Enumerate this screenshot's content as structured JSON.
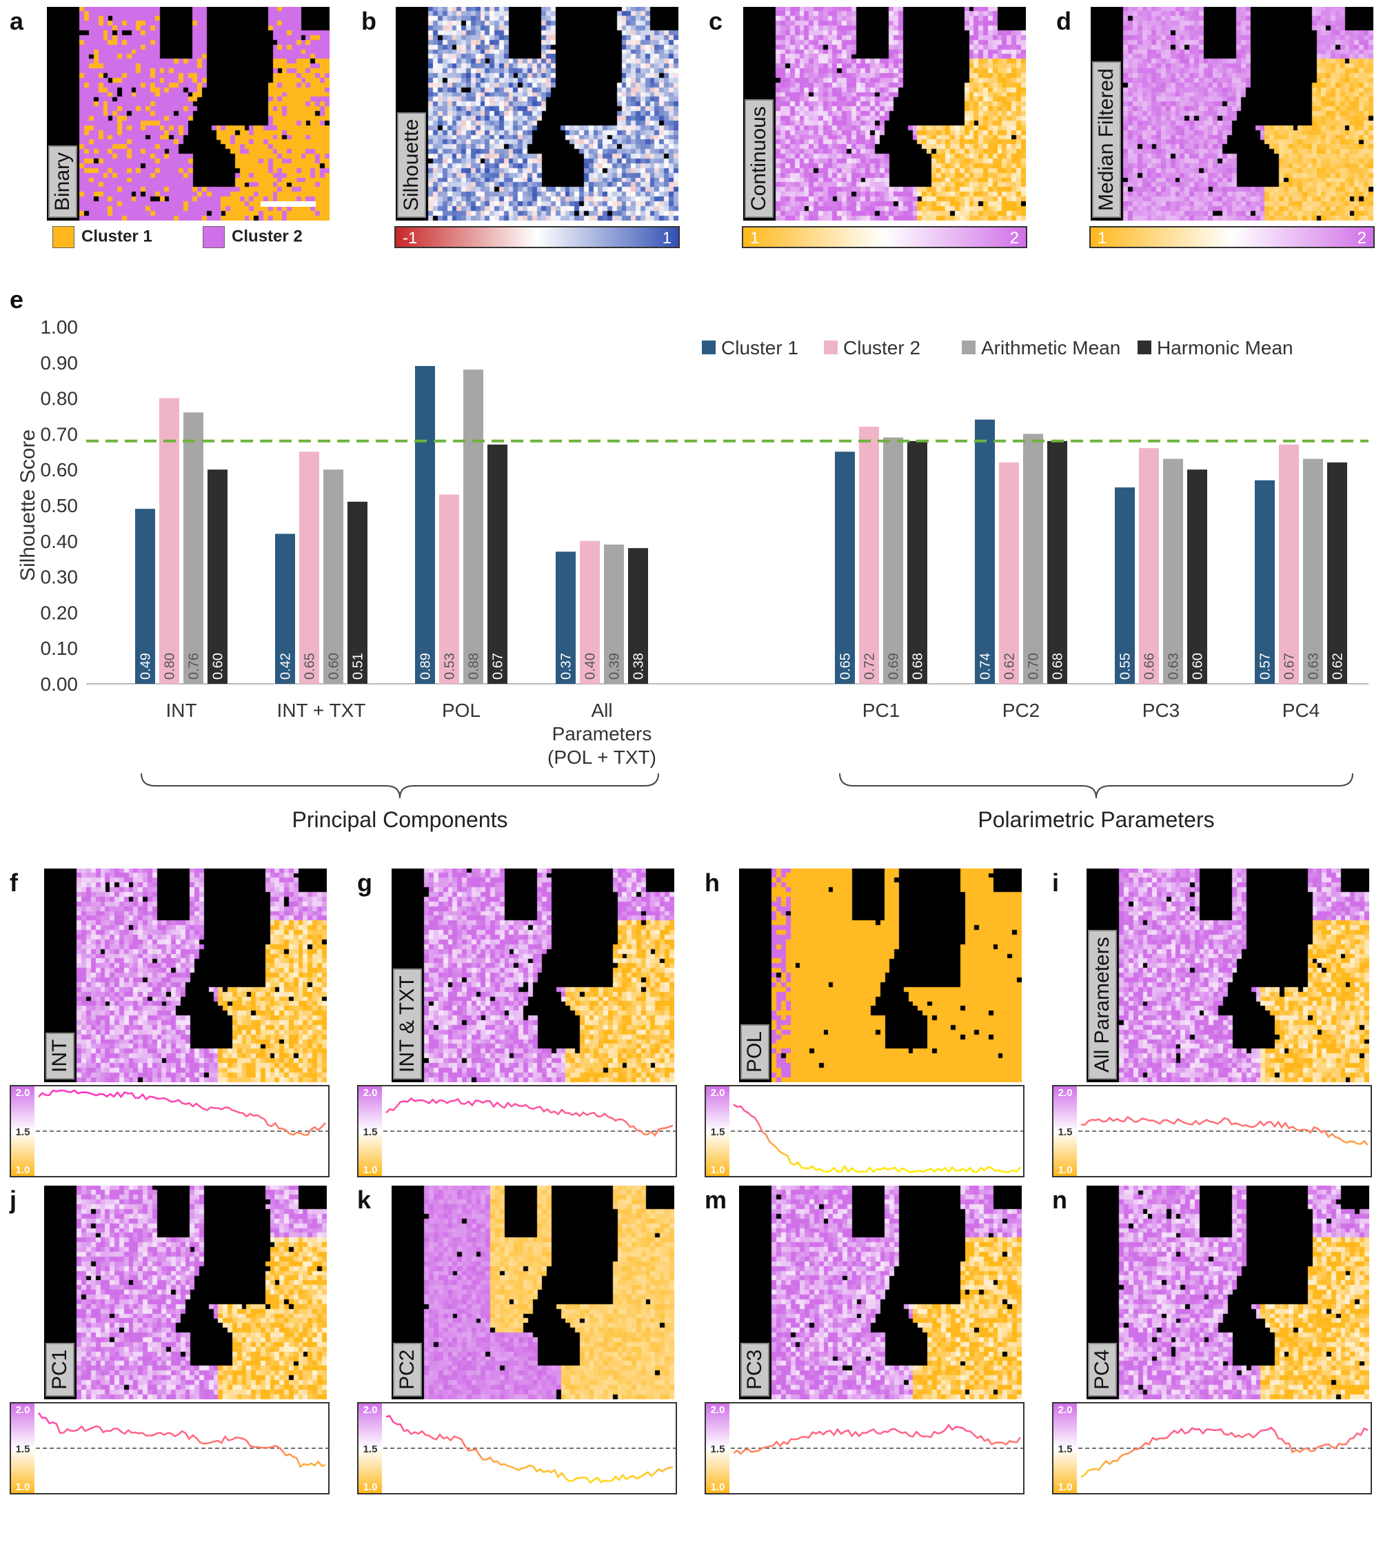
{
  "colors": {
    "cluster1": "#ffb81c",
    "cluster2": "#d070e8",
    "bar_c1": "#2c5a80",
    "bar_c2": "#f0b4c8",
    "bar_am": "#a6a6a6",
    "bar_hm": "#2e2e2e",
    "threshold": "#6db33f"
  },
  "top_panels": {
    "a": {
      "letter": "a",
      "label": "Binary"
    },
    "b": {
      "letter": "b",
      "label": "Silhouette",
      "cbar_min": "-1",
      "cbar_max": "1"
    },
    "c": {
      "letter": "c",
      "label": "Continuous",
      "cbar_min": "1",
      "cbar_max": "2"
    },
    "d": {
      "letter": "d",
      "label": "Median Filtered",
      "cbar_min": "1",
      "cbar_max": "2"
    },
    "legend": {
      "cluster1": "Cluster 1",
      "cluster2": "Cluster 2"
    }
  },
  "chart_data": {
    "type": "bar",
    "panel_letter": "e",
    "ylabel": "Silhouette Score",
    "ylim": [
      0,
      1
    ],
    "yticks": [
      "0.00",
      "0.10",
      "0.20",
      "0.30",
      "0.40",
      "0.50",
      "0.60",
      "0.70",
      "0.80",
      "0.90",
      "1.00"
    ],
    "threshold": 0.68,
    "categories": [
      "INT",
      "INT + TXT",
      "POL",
      "All Parameters (POL + TXT)",
      "PC1",
      "PC2",
      "PC3",
      "PC4"
    ],
    "category_lines": [
      [
        "INT"
      ],
      [
        "INT + TXT"
      ],
      [
        "POL"
      ],
      [
        "All",
        "Parameters",
        "(POL + TXT)"
      ],
      [
        "PC1"
      ],
      [
        "PC2"
      ],
      [
        "PC3"
      ],
      [
        "PC4"
      ]
    ],
    "series": [
      {
        "name": "Cluster 1",
        "values": [
          0.49,
          0.42,
          0.89,
          0.37,
          0.65,
          0.74,
          0.55,
          0.57
        ]
      },
      {
        "name": "Cluster 2",
        "values": [
          0.8,
          0.65,
          0.53,
          0.4,
          0.72,
          0.62,
          0.66,
          0.67
        ]
      },
      {
        "name": "Arithmetic Mean",
        "values": [
          0.76,
          0.6,
          0.88,
          0.39,
          0.69,
          0.7,
          0.63,
          0.63
        ]
      },
      {
        "name": "Harmonic Mean",
        "values": [
          0.6,
          0.51,
          0.67,
          0.38,
          0.68,
          0.68,
          0.6,
          0.62
        ]
      }
    ],
    "data_labels": [
      [
        "0.49",
        "0.80",
        "0.76",
        "0.60"
      ],
      [
        "0.42",
        "0.65",
        "0.60",
        "0.51"
      ],
      [
        "0.89",
        "0.53",
        "0.88",
        "0.67"
      ],
      [
        "0.37",
        "0.40",
        "0.39",
        "0.38"
      ],
      [
        "0.65",
        "0.72",
        "0.69",
        "0.68"
      ],
      [
        "0.74",
        "0.62",
        "0.70",
        "0.68"
      ],
      [
        "0.55",
        "0.66",
        "0.63",
        "0.60"
      ],
      [
        "0.57",
        "0.67",
        "0.63",
        "0.62"
      ]
    ],
    "brace_labels": [
      "Principal Components",
      "Polarimetric Parameters"
    ],
    "legend_position": "top-right"
  },
  "bottom_panels": [
    {
      "letter": "f",
      "label": "INT"
    },
    {
      "letter": "g",
      "label": "INT & TXT"
    },
    {
      "letter": "h",
      "label": "POL"
    },
    {
      "letter": "i",
      "label": "All Parameters"
    },
    {
      "letter": "j",
      "label": "PC1"
    },
    {
      "letter": "k",
      "label": "PC2"
    },
    {
      "letter": "m",
      "label": "PC3"
    },
    {
      "letter": "n",
      "label": "PC4"
    }
  ],
  "profile_ticks": [
    "2.0",
    "1.5",
    "1.0"
  ]
}
